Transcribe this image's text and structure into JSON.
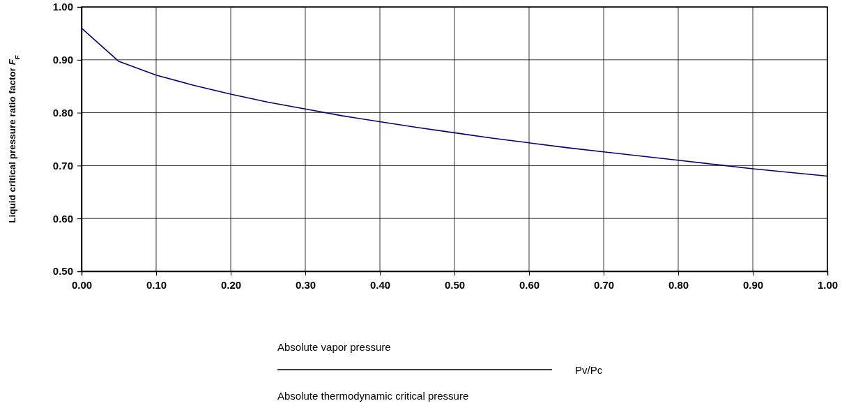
{
  "chart_data": {
    "type": "line",
    "ylabel": "Liquid critical pressure ratio factor F$_{F}$",
    "annotations": [
      "Absolute vapor pressure",
      "Absolute thermodynamic critical pressure",
      "Pv/Pc"
    ],
    "x": [
      0,
      0.05,
      0.1,
      0.15,
      0.2,
      0.25,
      0.3,
      0.35,
      0.4,
      0.45,
      0.5,
      0.55,
      0.6,
      0.65,
      0.7,
      0.75,
      0.8,
      0.85,
      0.9,
      0.95,
      1.0
    ],
    "series": [
      {
        "color": "#000080",
        "values": [
          0.96,
          0.897,
          0.871,
          0.852,
          0.835,
          0.82,
          0.807,
          0.794,
          0.783,
          0.772,
          0.762,
          0.752,
          0.743,
          0.734,
          0.726,
          0.718,
          0.71,
          0.702,
          0.694,
          0.687,
          0.68
        ]
      }
    ],
    "xlim": [
      0,
      1
    ],
    "ylim": [
      0.5,
      1
    ],
    "xticks": [
      {
        "value": 0,
        "label": "0.00"
      },
      {
        "value": 0.1,
        "label": "0.10"
      },
      {
        "value": 0.2,
        "label": "0.20"
      },
      {
        "value": 0.3,
        "label": "0.30"
      },
      {
        "value": 0.4,
        "label": "0.40"
      },
      {
        "value": 0.5,
        "label": "0.50"
      },
      {
        "value": 0.6,
        "label": "0.60"
      },
      {
        "value": 0.7,
        "label": "0.70"
      },
      {
        "value": 0.8,
        "label": "0.80"
      },
      {
        "value": 0.9,
        "label": "0.90"
      },
      {
        "value": 1,
        "label": "1.00"
      }
    ],
    "yticks": [
      {
        "value": 0.5,
        "label": "0.50"
      },
      {
        "value": 0.6,
        "label": "0.60"
      },
      {
        "value": 0.7,
        "label": "0.70"
      },
      {
        "value": 0.8,
        "label": "0.80"
      },
      {
        "value": 0.9,
        "label": "0.90"
      },
      {
        "value": 1,
        "label": "1.00"
      }
    ],
    "grid": true,
    "marker": "none",
    "line_style": "solid"
  }
}
